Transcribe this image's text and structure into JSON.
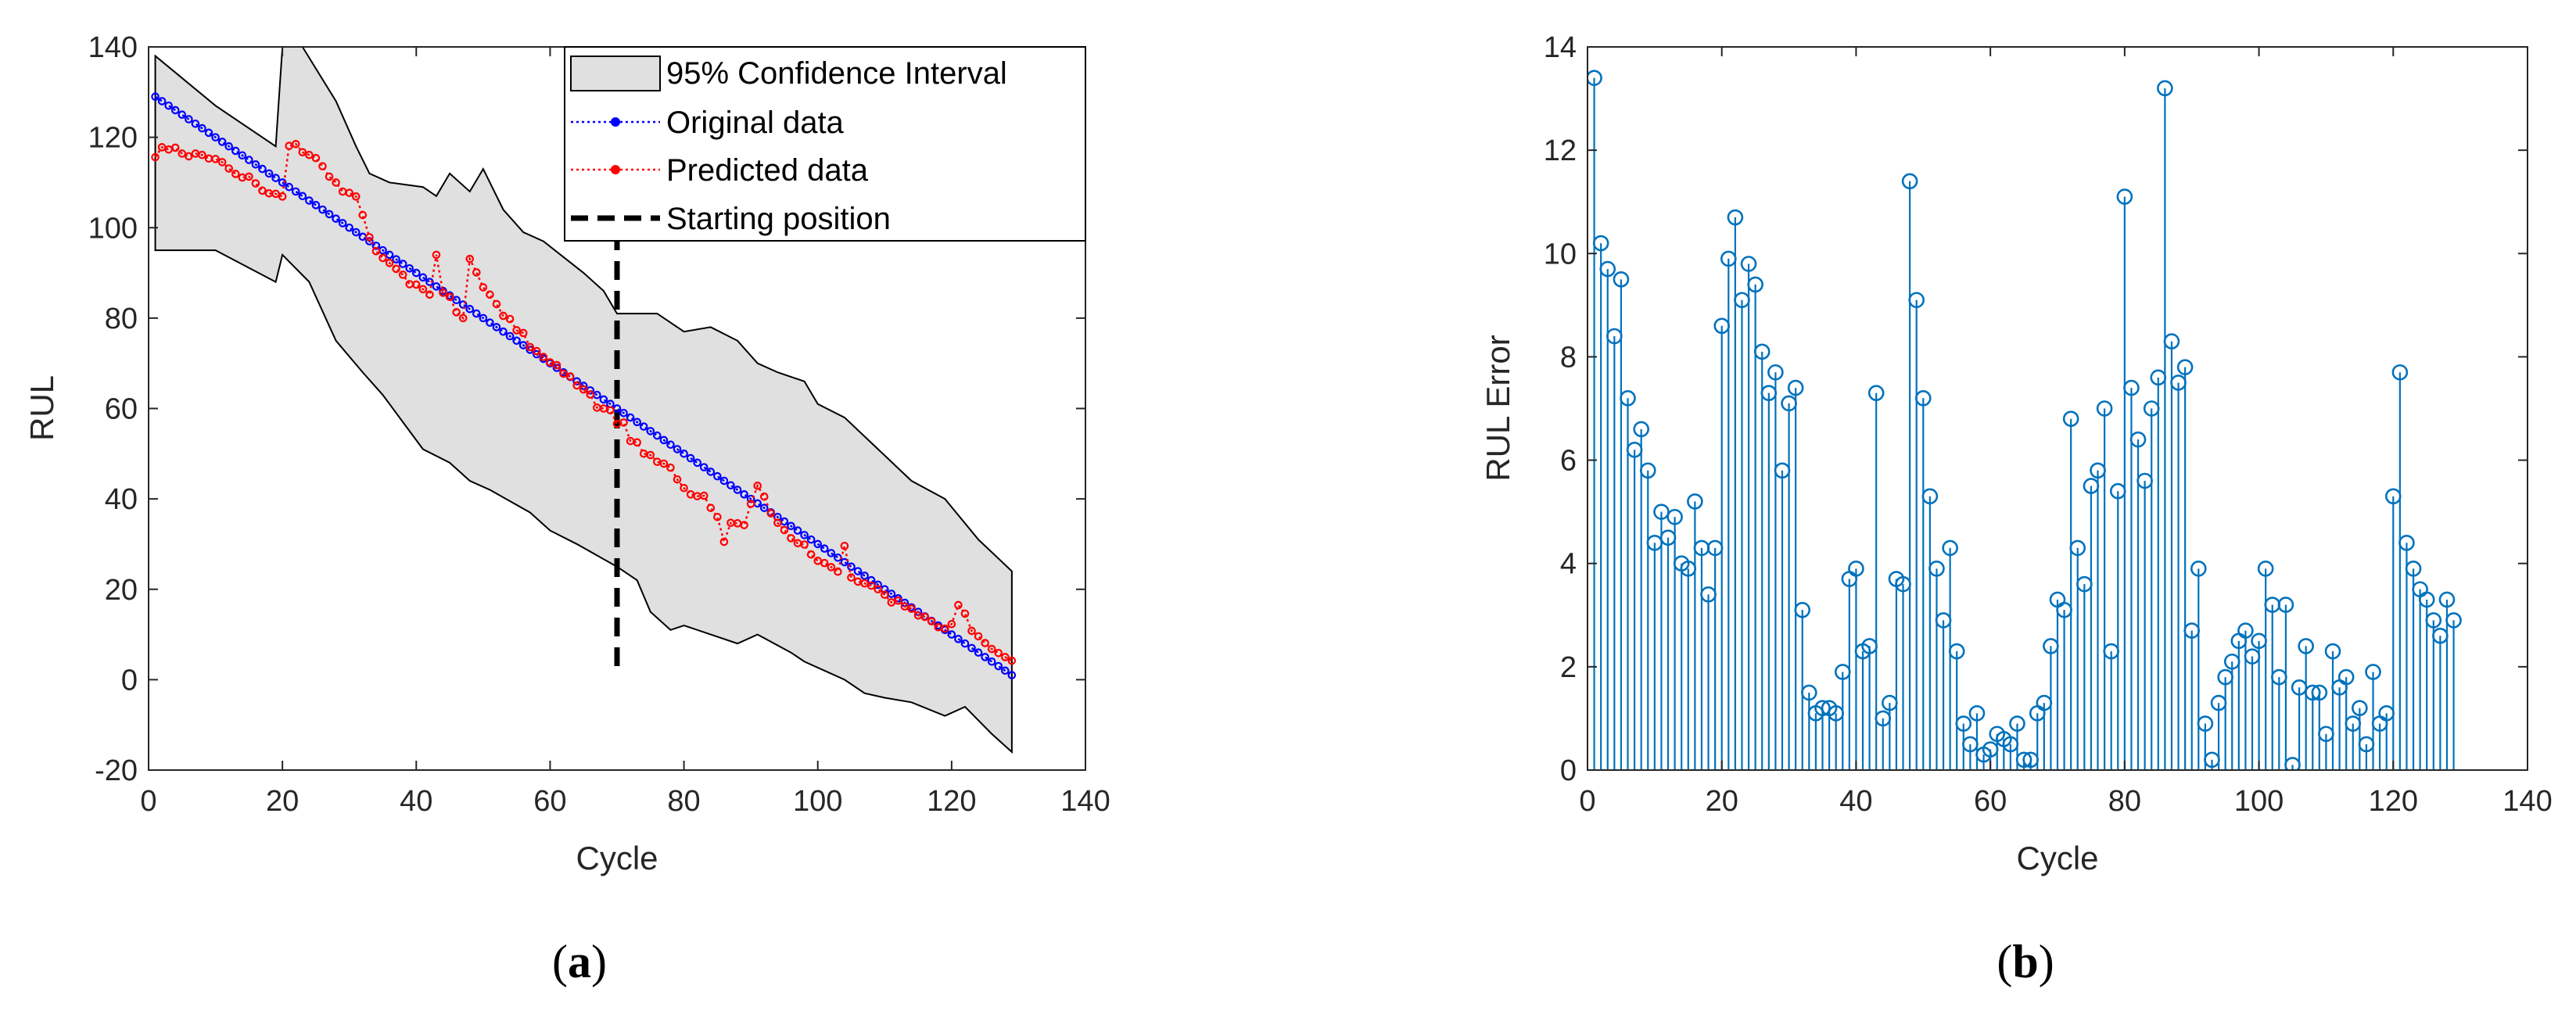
{
  "panels": {
    "a": {
      "label_open": "(",
      "label_letter": "a",
      "label_close": ")"
    },
    "b": {
      "label_open": "(",
      "label_letter": "b",
      "label_close": ")"
    }
  },
  "colors": {
    "original": "#0000ff",
    "predicted": "#ff0000",
    "ci_fill": "#e0e0e0",
    "stem": "#0072bd",
    "axis": "#262626"
  },
  "chart_data": [
    {
      "type": "line",
      "panel": "a",
      "title": "",
      "xlabel": "Cycle",
      "ylabel": "RUL",
      "xlim": [
        0,
        140
      ],
      "ylim": [
        -20,
        140
      ],
      "xticks": [
        0,
        20,
        40,
        60,
        80,
        100,
        120,
        140
      ],
      "yticks": [
        -20,
        0,
        20,
        40,
        60,
        80,
        100,
        120,
        140
      ],
      "legend_position": "top-right",
      "legend": [
        "95% Confidence Interval",
        "Original data",
        "Predicted data",
        "Starting position"
      ],
      "starting_position": {
        "x": 70,
        "y_range": [
          3,
          97
        ]
      },
      "ci_upper": [
        [
          1,
          138
        ],
        [
          10,
          127
        ],
        [
          19,
          118
        ],
        [
          20,
          140
        ],
        [
          23,
          140
        ],
        [
          28,
          128
        ],
        [
          31,
          118
        ],
        [
          33,
          112
        ],
        [
          36,
          110
        ],
        [
          41,
          109
        ],
        [
          43,
          107
        ],
        [
          45,
          112
        ],
        [
          48,
          108
        ],
        [
          50,
          113
        ],
        [
          53,
          104
        ],
        [
          56,
          99
        ],
        [
          59,
          97
        ],
        [
          65,
          90
        ],
        [
          68,
          86
        ],
        [
          70,
          81
        ],
        [
          76,
          81
        ],
        [
          80,
          77
        ],
        [
          84,
          78
        ],
        [
          88,
          75
        ],
        [
          91,
          70
        ],
        [
          94,
          68
        ],
        [
          98,
          66
        ],
        [
          100,
          61
        ],
        [
          104,
          58
        ],
        [
          109,
          51
        ],
        [
          114,
          44
        ],
        [
          119,
          40
        ],
        [
          124,
          31
        ],
        [
          129,
          24
        ]
      ],
      "ci_lower": [
        [
          1,
          95
        ],
        [
          10,
          95
        ],
        [
          19,
          88
        ],
        [
          20,
          94
        ],
        [
          24,
          88
        ],
        [
          28,
          75
        ],
        [
          32,
          68
        ],
        [
          35,
          63
        ],
        [
          38,
          57
        ],
        [
          41,
          51
        ],
        [
          45,
          48
        ],
        [
          48,
          44
        ],
        [
          51,
          42
        ],
        [
          57,
          37
        ],
        [
          60,
          33
        ],
        [
          64,
          30
        ],
        [
          70,
          25
        ],
        [
          73,
          22
        ],
        [
          75,
          15
        ],
        [
          78,
          11
        ],
        [
          80,
          12
        ],
        [
          84,
          10
        ],
        [
          88,
          8
        ],
        [
          91,
          10
        ],
        [
          96,
          6
        ],
        [
          98,
          4
        ],
        [
          101,
          2
        ],
        [
          104,
          0
        ],
        [
          107,
          -3
        ],
        [
          110,
          -4
        ],
        [
          114,
          -5
        ],
        [
          119,
          -8
        ],
        [
          122,
          -6
        ],
        [
          126,
          -12
        ],
        [
          129,
          -16
        ]
      ],
      "series": [
        {
          "name": "Original data",
          "values": [
            129,
            128,
            127,
            126,
            125,
            124,
            123,
            122,
            121,
            120,
            119,
            118,
            117,
            116,
            115,
            114,
            113,
            112,
            111,
            110,
            109,
            108,
            107,
            106,
            105,
            104,
            103,
            102,
            101,
            100,
            99,
            98,
            97,
            96,
            95,
            94,
            93,
            92,
            91,
            90,
            89,
            88,
            87,
            86,
            85,
            84,
            83,
            82,
            81,
            80,
            79,
            78,
            77,
            76,
            75,
            74,
            73,
            72,
            71,
            70,
            69,
            68,
            67,
            66,
            65,
            64,
            63,
            62,
            61,
            60,
            59,
            58,
            57,
            56,
            55,
            54,
            53,
            52,
            51,
            50,
            49,
            48,
            47,
            46,
            45,
            44,
            43,
            42,
            41,
            40,
            39,
            38,
            37,
            36,
            35,
            34,
            33,
            32,
            31,
            30,
            29,
            28,
            27,
            26,
            25,
            24,
            23,
            22,
            21,
            20,
            19,
            18,
            17,
            16,
            15,
            14,
            13,
            12,
            11,
            10,
            9,
            8,
            7,
            6,
            5,
            4,
            3,
            2,
            1
          ]
        },
        {
          "name": "Predicted data",
          "values": [
            115.6,
            117.8,
            117.3,
            117.7,
            116.4,
            115.8,
            116.4,
            116.1,
            115.3,
            115.2,
            114.5,
            113.1,
            111.9,
            111.1,
            111.3,
            109.8,
            108.2,
            107.6,
            107.5,
            106.9,
            118.1,
            118.5,
            116.7,
            116.1,
            115.4,
            113.6,
            111.3,
            110.0,
            108.0,
            107.7,
            106.9,
            102.8,
            97.9,
            94.8,
            93.3,
            92.2,
            90.9,
            89.6,
            87.5,
            87.4,
            86.4,
            85.2,
            94.0,
            85.6,
            84.7,
            81.3,
            80.0,
            93.1,
            90.1,
            86.8,
            85.2,
            83.1,
            80.5,
            79.8,
            77.3,
            76.7,
            73.6,
            72.7,
            71.4,
            70.2,
            69.6,
            67.7,
            67.1,
            65.1,
            64.2,
            63.1,
            60.2,
            60.0,
            59.6,
            56.6,
            56.9,
            52.8,
            52.5,
            50.0,
            49.7,
            48.2,
            47.8,
            46.9,
            44.3,
            42.4,
            41.0,
            40.6,
            40.7,
            38.0,
            36.0,
            30.5,
            34.7,
            34.6,
            34.2,
            38.9,
            42.9,
            40.5,
            36.8,
            34.7,
            33.1,
            31.3,
            30.2,
            29.9,
            27.7,
            26.3,
            25.8,
            24.9,
            23.9,
            29.6,
            22.6,
            21.7,
            21.3,
            20.8,
            20.0,
            18.8,
            17.1,
            17.5,
            16.2,
            15.7,
            14.2,
            13.9,
            12.9,
            11.6,
            11.3,
            12.3,
            16.5,
            14.6,
            10.8,
            9.6,
            8.1,
            6.8,
            5.9,
            5.0,
            4.2
          ]
        }
      ]
    },
    {
      "type": "stem",
      "panel": "b",
      "title": "",
      "xlabel": "Cycle",
      "ylabel": "RUL Error",
      "xlim": [
        0,
        140
      ],
      "ylim": [
        0,
        14
      ],
      "xticks": [
        0,
        20,
        40,
        60,
        80,
        100,
        120,
        140
      ],
      "yticks": [
        0,
        2,
        4,
        6,
        8,
        10,
        12,
        14
      ],
      "series": [
        {
          "name": "RUL Error",
          "values": [
            13.4,
            10.2,
            9.7,
            8.4,
            9.5,
            7.2,
            6.2,
            6.6,
            5.8,
            4.4,
            5.0,
            4.5,
            4.9,
            4.0,
            3.9,
            5.2,
            4.3,
            3.4,
            4.3,
            8.6,
            9.9,
            10.7,
            9.1,
            9.8,
            9.4,
            8.1,
            7.3,
            7.7,
            5.8,
            7.1,
            7.4,
            3.1,
            1.5,
            1.1,
            1.2,
            1.2,
            1.1,
            1.9,
            3.7,
            3.9,
            2.3,
            2.4,
            7.3,
            1.0,
            1.3,
            3.7,
            3.6,
            11.4,
            9.1,
            7.2,
            5.3,
            3.9,
            2.9,
            4.3,
            2.3,
            0.9,
            0.5,
            1.1,
            0.3,
            0.4,
            0.7,
            0.6,
            0.5,
            0.9,
            0.2,
            0.2,
            1.1,
            1.3,
            2.4,
            3.3,
            3.1,
            6.8,
            4.3,
            3.6,
            5.5,
            5.8,
            7.0,
            2.3,
            5.4,
            11.1,
            7.4,
            6.4,
            5.6,
            7.0,
            7.6,
            13.2,
            8.3,
            7.5,
            7.8,
            2.7,
            3.9,
            0.9,
            0.2,
            1.3,
            1.8,
            2.1,
            2.5,
            2.7,
            2.2,
            2.5,
            3.9,
            3.2,
            1.8,
            3.2,
            0.1,
            1.6,
            2.4,
            1.5,
            1.5,
            0.7,
            2.3,
            1.6,
            1.8,
            0.9,
            1.2,
            0.5,
            1.9,
            0.9,
            1.1,
            5.3,
            7.7,
            4.4,
            3.9,
            3.5,
            3.3,
            2.9,
            2.6,
            3.3,
            2.9
          ]
        }
      ]
    }
  ]
}
